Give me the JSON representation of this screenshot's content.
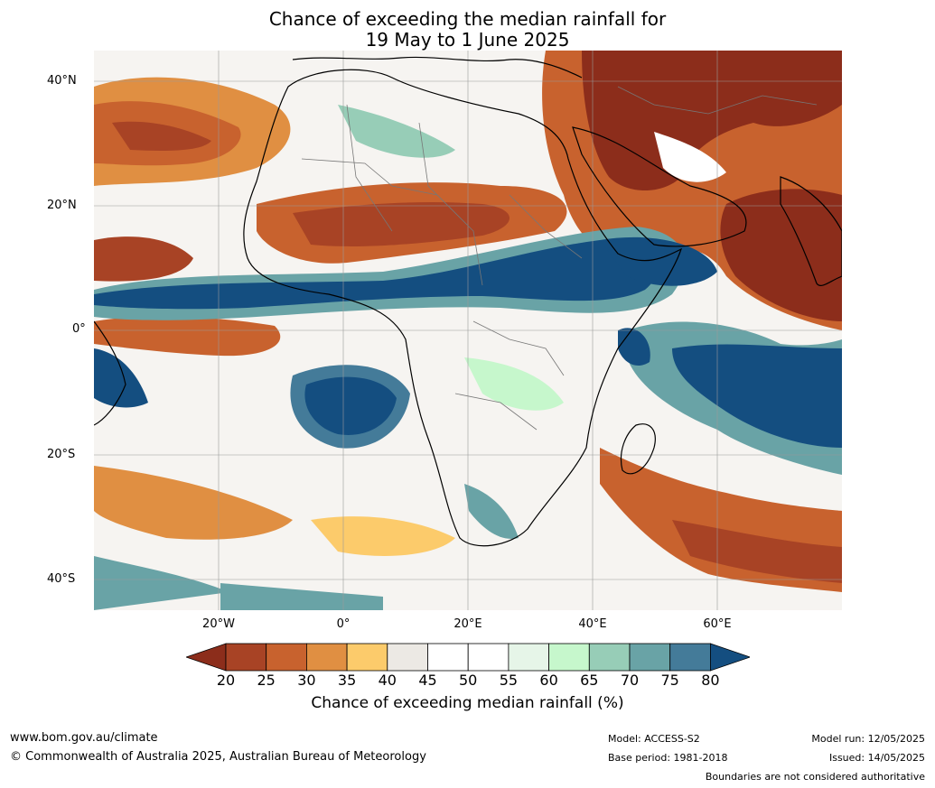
{
  "title": {
    "line1": "Chance of exceeding the median rainfall for",
    "line2": "19 May to 1 June 2025"
  },
  "axes": {
    "lat_labels": [
      "40°N",
      "20°N",
      "0°",
      "20°S",
      "40°S"
    ],
    "lon_labels": [
      "20°W",
      "0°",
      "20°E",
      "40°E",
      "60°E"
    ],
    "lat_extent": [
      -45,
      45
    ],
    "lon_extent": [
      -40,
      80
    ]
  },
  "colorbar": {
    "ticks": [
      "20",
      "25",
      "30",
      "35",
      "40",
      "45",
      "50",
      "55",
      "60",
      "65",
      "70",
      "75",
      "80"
    ],
    "colors": [
      "#8c2d1b",
      "#a84325",
      "#c8622e",
      "#e08f42",
      "#fccb6b",
      "#ece9e4",
      "#ffffff",
      "#ffffff",
      "#e6f5e8",
      "#c6f7cc",
      "#97cdb7",
      "#69a3a6",
      "#447b99",
      "#144e80"
    ],
    "label": "Chance of exceeding median rainfall (%)"
  },
  "footer": {
    "website": "www.bom.gov.au/climate",
    "copyright": "© Commonwealth of Australia 2025, Australian Bureau of Meteorology",
    "model": "Model: ACCESS-S2",
    "base_period": "Base period: 1981-2018",
    "model_run": "Model run: 12/05/2025",
    "issued": "Issued: 14/05/2025",
    "disclaimer": "Boundaries are not considered authoritative"
  }
}
